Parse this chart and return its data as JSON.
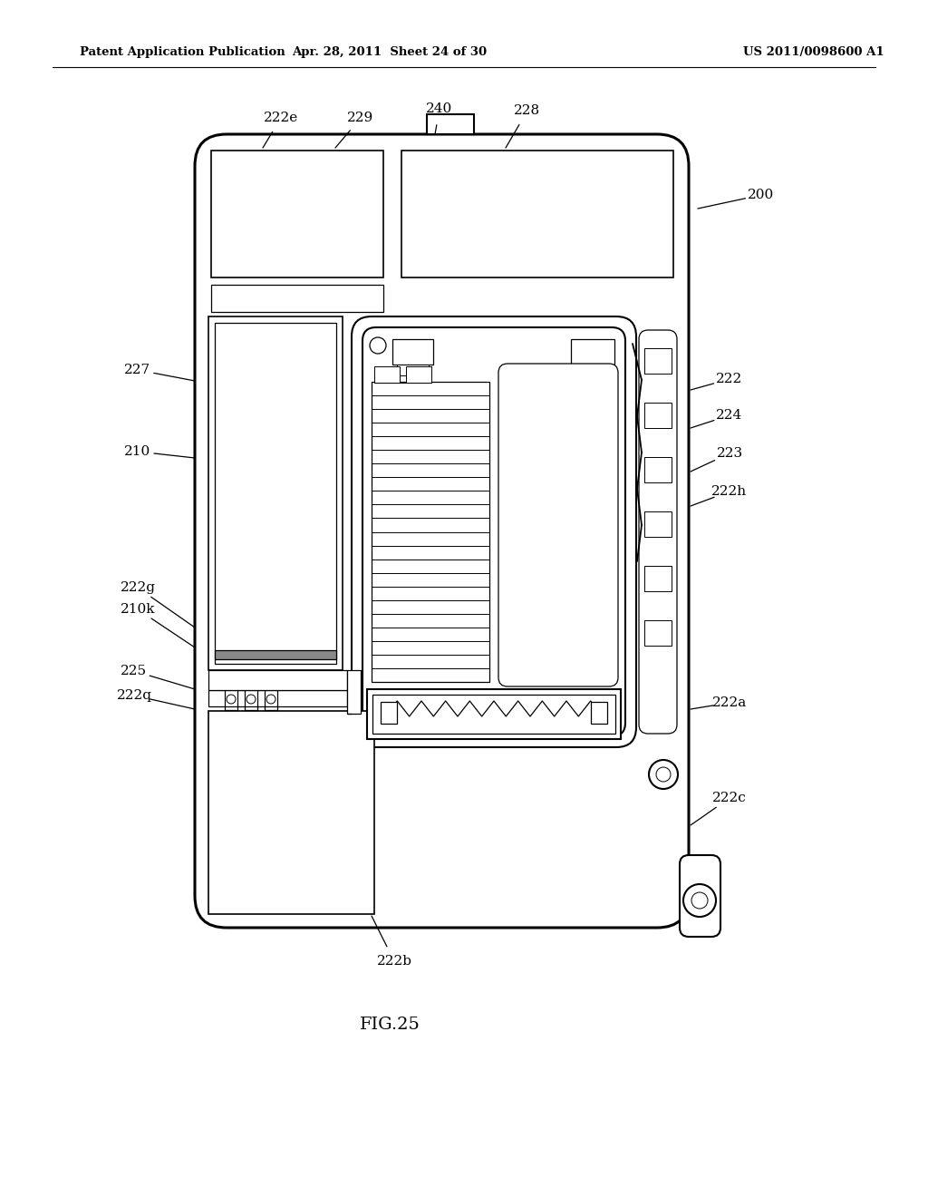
{
  "background_color": "#ffffff",
  "header_left": "Patent Application Publication",
  "header_mid": "Apr. 28, 2011  Sheet 24 of 30",
  "header_right": "US 2011/0098600 A1",
  "figure_label": "FIG.25"
}
